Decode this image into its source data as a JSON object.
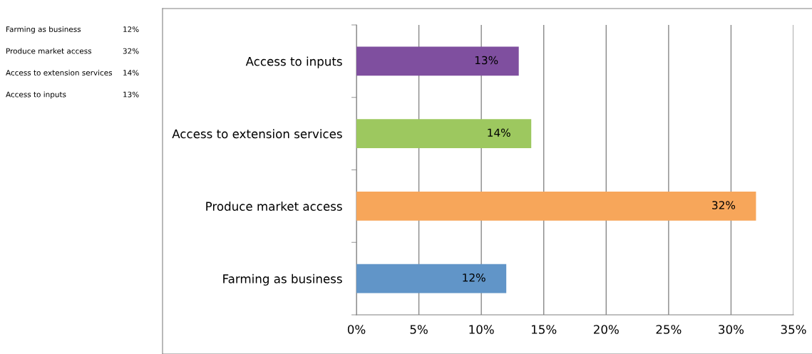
{
  "chart_data": {
    "type": "bar",
    "orientation": "horizontal",
    "categories": [
      "Access to inputs",
      "Access to extension services",
      "Produce market access",
      "Farming as business"
    ],
    "values": [
      13,
      14,
      32,
      12
    ],
    "colors": [
      "#7f4f9f",
      "#9dc85f",
      "#f7a65a",
      "#6195c8"
    ],
    "xlim": [
      0,
      35
    ],
    "xticks": [
      {
        "value": 0,
        "label": "0%"
      },
      {
        "value": 5,
        "label": "5%"
      },
      {
        "value": 10,
        "label": "10%"
      },
      {
        "value": 15,
        "label": "15%"
      },
      {
        "value": 20,
        "label": "20%"
      },
      {
        "value": 25,
        "label": "25%"
      },
      {
        "value": 30,
        "label": "30%"
      },
      {
        "value": 35,
        "label": "35%"
      }
    ],
    "value_labels": [
      "13%",
      "14%",
      "32%",
      "12%"
    ],
    "grid": "x",
    "legend": false
  }
}
